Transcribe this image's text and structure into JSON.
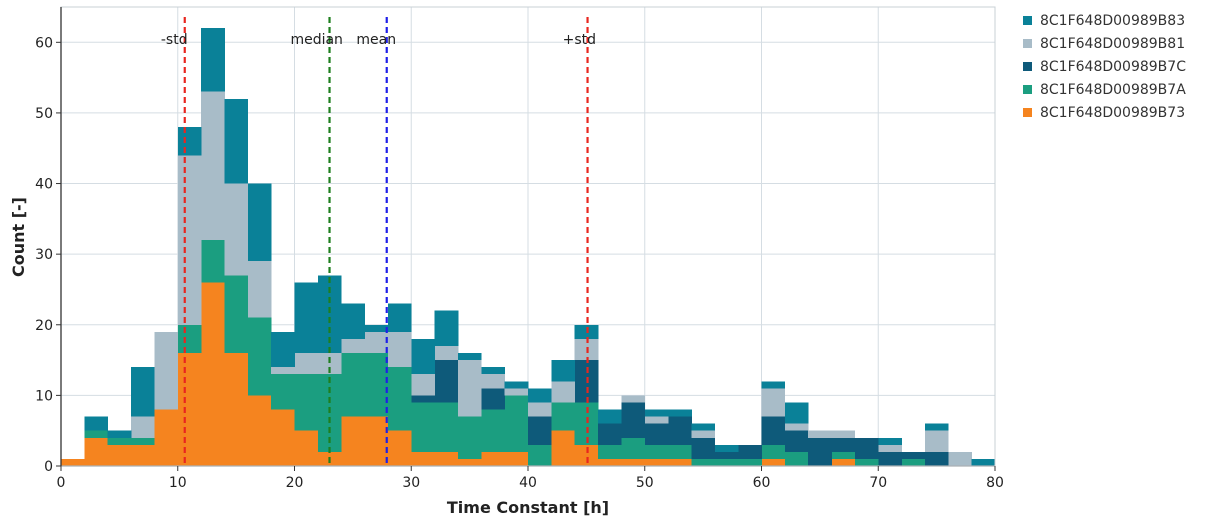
{
  "chart_data": {
    "type": "bar",
    "stacked": true,
    "xlabel": "Time Constant [h]",
    "ylabel": "Count [-]",
    "xlim": [
      0,
      80
    ],
    "ylim": [
      0,
      65
    ],
    "xticks": [
      0,
      10,
      20,
      30,
      40,
      50,
      60,
      70,
      80
    ],
    "yticks": [
      0,
      10,
      20,
      30,
      40,
      50,
      60
    ],
    "grid": true,
    "legend_position": "right",
    "bin_width": 2,
    "x": [
      1,
      3,
      5,
      7,
      9,
      11,
      13,
      15,
      17,
      19,
      21,
      23,
      25,
      27,
      29,
      31,
      33,
      35,
      37,
      39,
      41,
      43,
      45,
      47,
      49,
      51,
      53,
      55,
      57,
      59,
      61,
      63,
      65,
      67,
      69,
      71,
      73,
      75,
      77,
      79
    ],
    "series": [
      {
        "name": "8C1F648D00989B73",
        "color": "#f5841f",
        "values": [
          1,
          4,
          3,
          3,
          8,
          16,
          26,
          16,
          10,
          8,
          5,
          2,
          7,
          7,
          5,
          2,
          2,
          1,
          2,
          2,
          0,
          5,
          3,
          1,
          1,
          1,
          1,
          0,
          0,
          0,
          1,
          0,
          0,
          1,
          0,
          0,
          0,
          0,
          0,
          0
        ]
      },
      {
        "name": "8C1F648D00989B7A",
        "color": "#1b9e80",
        "values": [
          0,
          1,
          1,
          1,
          0,
          4,
          6,
          11,
          11,
          5,
          8,
          11,
          9,
          9,
          9,
          7,
          7,
          6,
          6,
          8,
          3,
          4,
          6,
          2,
          3,
          2,
          2,
          1,
          1,
          1,
          2,
          2,
          0,
          1,
          1,
          0,
          1,
          0,
          0,
          0
        ]
      },
      {
        "name": "8C1F648D00989B7C",
        "color": "#0e5a7a",
        "values": [
          0,
          0,
          0,
          0,
          0,
          0,
          0,
          0,
          0,
          0,
          0,
          0,
          0,
          0,
          0,
          1,
          6,
          0,
          3,
          0,
          4,
          0,
          6,
          3,
          5,
          3,
          4,
          3,
          1,
          2,
          4,
          3,
          4,
          2,
          3,
          2,
          1,
          2,
          0,
          0
        ]
      },
      {
        "name": "8C1F648D00989B81",
        "color": "#a8bcc8",
        "values": [
          0,
          0,
          0,
          3,
          11,
          24,
          21,
          13,
          8,
          1,
          3,
          3,
          2,
          3,
          5,
          3,
          2,
          8,
          2,
          1,
          2,
          3,
          3,
          0,
          1,
          1,
          0,
          1,
          0,
          0,
          4,
          1,
          1,
          1,
          0,
          1,
          0,
          3,
          2,
          0
        ]
      },
      {
        "name": "8C1F648D00989B83",
        "color": "#0a8198",
        "values": [
          0,
          2,
          1,
          7,
          0,
          4,
          9,
          12,
          11,
          5,
          10,
          11,
          5,
          1,
          4,
          5,
          5,
          1,
          1,
          1,
          2,
          3,
          2,
          2,
          0,
          1,
          1,
          1,
          1,
          0,
          1,
          3,
          0,
          0,
          0,
          1,
          0,
          1,
          0,
          1
        ]
      }
    ],
    "vlines": [
      {
        "label": "-std",
        "x": 10.6,
        "color": "#e8261f",
        "label_x": 9.7
      },
      {
        "label": "median",
        "x": 23.0,
        "color": "#1e7f1e",
        "label_x": 21.9
      },
      {
        "label": "mean",
        "x": 27.9,
        "color": "#1f1fe8",
        "label_x": 27.0
      },
      {
        "label": "+std",
        "x": 45.1,
        "color": "#e8261f",
        "label_x": 44.4
      }
    ],
    "legend_order": [
      "8C1F648D00989B83",
      "8C1F648D00989B81",
      "8C1F648D00989B7C",
      "8C1F648D00989B7A",
      "8C1F648D00989B73"
    ]
  }
}
